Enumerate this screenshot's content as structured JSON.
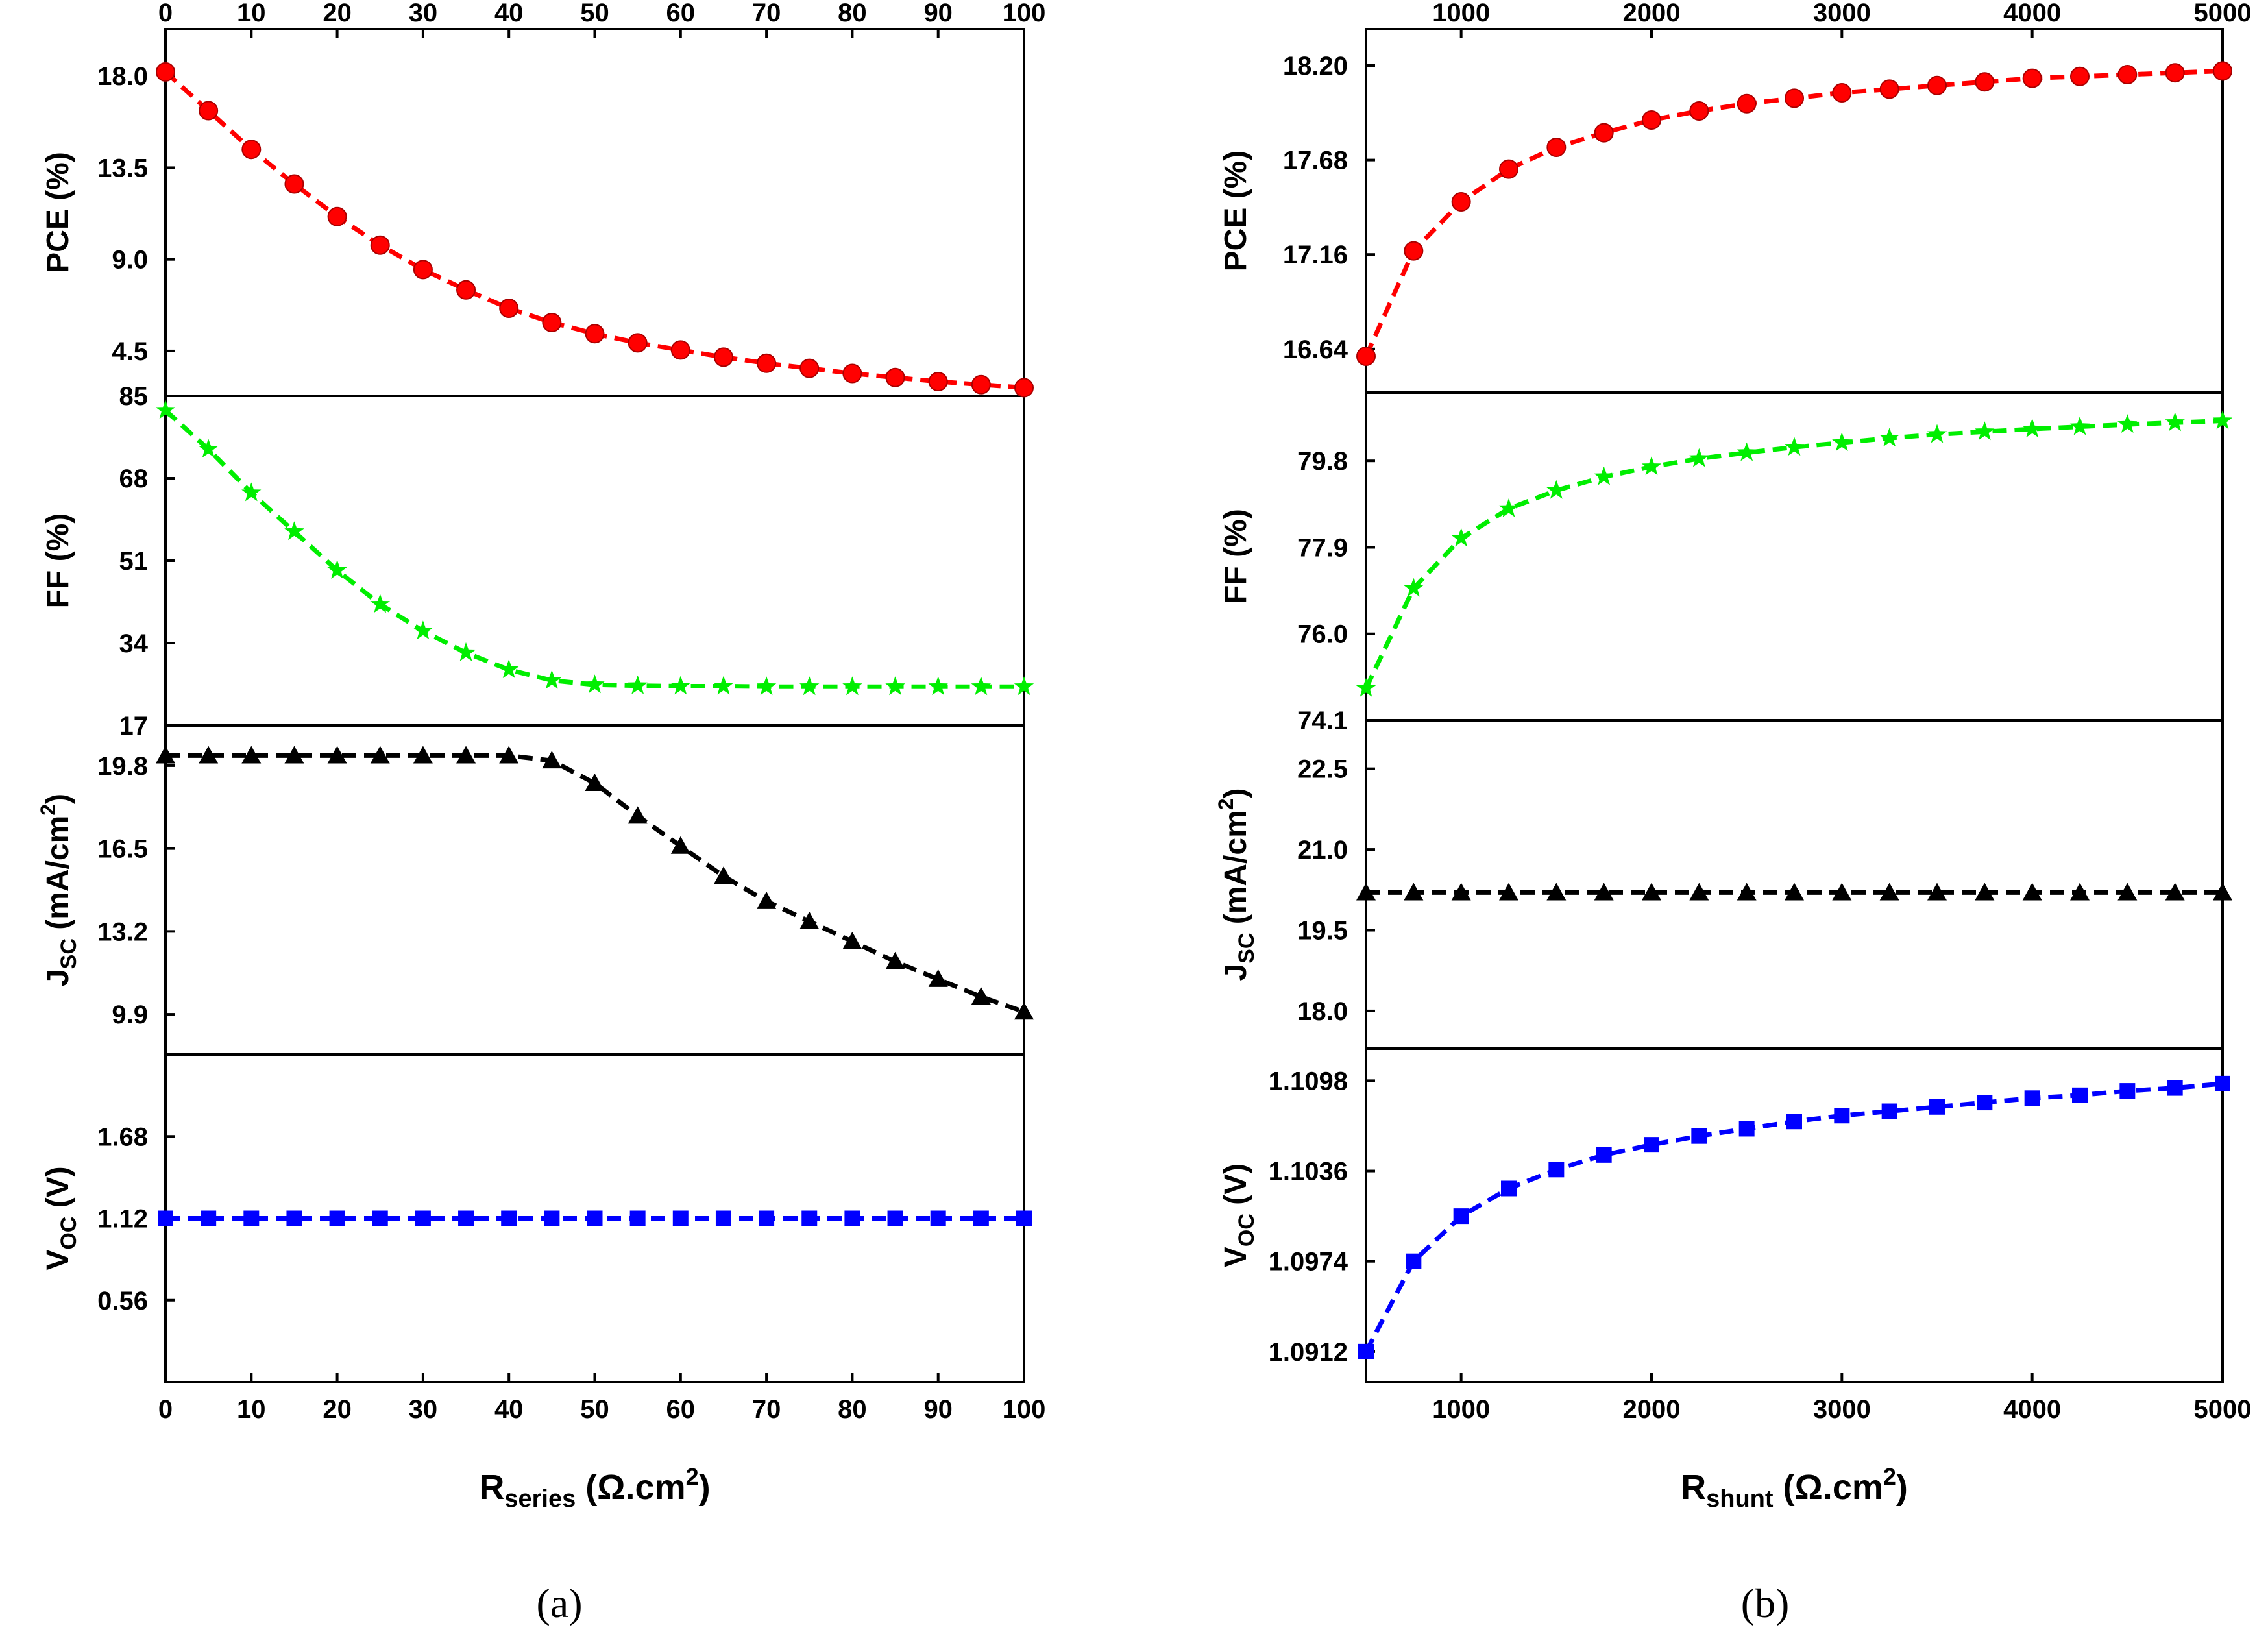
{
  "chart_data": [
    {
      "caption": "(a)",
      "type": "line",
      "x_axis": {
        "label_main": "R",
        "label_sub": "series",
        "label_unit_pre": " (Ω.cm",
        "label_unit_sup": "2",
        "label_unit_post": ")",
        "range": [
          0,
          100
        ],
        "ticks": [
          0,
          10,
          20,
          30,
          40,
          50,
          60,
          70,
          80,
          90,
          100
        ],
        "tick_labels": [
          "0",
          "10",
          "20",
          "30",
          "40",
          "50",
          "60",
          "70",
          "80",
          "90",
          "100"
        ],
        "top_mirror": true
      },
      "x": [
        0,
        5,
        10,
        15,
        20,
        25,
        30,
        35,
        40,
        45,
        50,
        55,
        60,
        65,
        70,
        75,
        80,
        85,
        90,
        95,
        100
      ],
      "subplots": [
        {
          "name": "PCE",
          "ylabel": "PCE (%)",
          "ylim": [
            2.3,
            20.3
          ],
          "yticks": [
            4.5,
            9.0,
            13.5,
            18.0
          ],
          "ytick_labels": [
            "4.5",
            "9.0",
            "13.5",
            "18.0"
          ],
          "color": "#ff0000",
          "marker": "circle",
          "values": [
            18.2,
            16.3,
            14.4,
            12.7,
            11.1,
            9.7,
            8.5,
            7.5,
            6.6,
            5.9,
            5.35,
            4.9,
            4.55,
            4.2,
            3.9,
            3.65,
            3.4,
            3.2,
            3.0,
            2.85,
            2.7
          ]
        },
        {
          "name": "FF",
          "ylabel": "FF (%)",
          "ylim": [
            17,
            85
          ],
          "yticks": [
            17,
            34,
            51,
            68,
            85
          ],
          "ytick_labels": [
            "17",
            "34",
            "51",
            "68",
            "85"
          ],
          "color": "#00ee00",
          "marker": "star",
          "values": [
            82,
            74,
            65,
            57,
            49,
            42,
            36.5,
            32,
            28.5,
            26.3,
            25.4,
            25.2,
            25.1,
            25.1,
            25.0,
            25.0,
            25.0,
            25.0,
            25.0,
            25.0,
            25.0
          ]
        },
        {
          "name": "Jsc",
          "ylabel_main": "J",
          "ylabel_sub": "SC",
          "ylabel_pre": " (mA/cm",
          "ylabel_sup": "2",
          "ylabel_post": ")",
          "ylim": [
            8.3,
            21.4
          ],
          "yticks": [
            9.9,
            13.2,
            16.5,
            19.8
          ],
          "ytick_labels": [
            "9.9",
            "13.2",
            "16.5",
            "19.8"
          ],
          "color": "#000000",
          "marker": "triangle",
          "values": [
            20.2,
            20.2,
            20.2,
            20.2,
            20.2,
            20.2,
            20.2,
            20.2,
            20.2,
            20.0,
            19.1,
            17.8,
            16.6,
            15.4,
            14.4,
            13.6,
            12.8,
            12.0,
            11.3,
            10.6,
            10.0
          ]
        },
        {
          "name": "Voc",
          "ylabel_main": "V",
          "ylabel_sub": "OC",
          "ylabel_post": " (V)",
          "ylim": [
            0,
            2.24
          ],
          "yticks": [
            0.56,
            1.12,
            1.68
          ],
          "ytick_labels": [
            "0.56",
            "1.12",
            "1.68"
          ],
          "color": "#0000ff",
          "marker": "square",
          "values": [
            1.12,
            1.12,
            1.12,
            1.12,
            1.12,
            1.12,
            1.12,
            1.12,
            1.12,
            1.12,
            1.12,
            1.12,
            1.12,
            1.12,
            1.12,
            1.12,
            1.12,
            1.12,
            1.12,
            1.12,
            1.12
          ]
        }
      ]
    },
    {
      "caption": "(b)",
      "type": "line",
      "x_axis": {
        "label_main": "R",
        "label_sub": "shunt",
        "label_unit_pre": " (Ω.cm",
        "label_unit_sup": "2",
        "label_unit_post": ")",
        "range": [
          500,
          5000
        ],
        "ticks": [
          1000,
          2000,
          3000,
          4000,
          5000
        ],
        "tick_labels": [
          "1000",
          "2000",
          "3000",
          "4000",
          "5000"
        ],
        "top_mirror": true
      },
      "x": [
        500,
        750,
        1000,
        1250,
        1500,
        1750,
        2000,
        2250,
        2500,
        2750,
        3000,
        3250,
        3500,
        3750,
        4000,
        4250,
        4500,
        4750,
        5000
      ],
      "subplots": [
        {
          "name": "PCE",
          "ylabel": "PCE (%)",
          "ylim": [
            16.4,
            18.4
          ],
          "yticks": [
            16.64,
            17.16,
            17.68,
            18.2
          ],
          "ytick_labels": [
            "16.64",
            "17.16",
            "17.68",
            "18.20"
          ],
          "color": "#ff0000",
          "marker": "circle",
          "values": [
            16.6,
            17.18,
            17.45,
            17.63,
            17.75,
            17.83,
            17.9,
            17.95,
            17.99,
            18.02,
            18.05,
            18.07,
            18.09,
            18.11,
            18.13,
            18.14,
            18.15,
            18.16,
            18.17
          ]
        },
        {
          "name": "FF",
          "ylabel": "FF (%)",
          "ylim": [
            74.1,
            81.3
          ],
          "yticks": [
            74.1,
            76.0,
            77.9,
            79.8
          ],
          "ytick_labels": [
            "74.1",
            "76.0",
            "77.9",
            "79.8"
          ],
          "color": "#00ee00",
          "marker": "star",
          "values": [
            74.8,
            77.0,
            78.1,
            78.75,
            79.15,
            79.45,
            79.67,
            79.85,
            79.98,
            80.1,
            80.2,
            80.3,
            80.38,
            80.44,
            80.5,
            80.55,
            80.6,
            80.64,
            80.68
          ]
        },
        {
          "name": "Jsc",
          "ylabel_main": "J",
          "ylabel_sub": "SC",
          "ylabel_pre": " (mA/cm",
          "ylabel_sup": "2",
          "ylabel_post": ")",
          "ylim": [
            17.3,
            23.4
          ],
          "yticks": [
            18.0,
            19.5,
            21.0,
            22.5
          ],
          "ytick_labels": [
            "18.0",
            "19.5",
            "21.0",
            "22.5"
          ],
          "color": "#000000",
          "marker": "triangle",
          "values": [
            20.2,
            20.2,
            20.2,
            20.2,
            20.2,
            20.2,
            20.2,
            20.2,
            20.2,
            20.2,
            20.2,
            20.2,
            20.2,
            20.2,
            20.2,
            20.2,
            20.2,
            20.2,
            20.2
          ]
        },
        {
          "name": "Voc",
          "ylabel_main": "V",
          "ylabel_sub": "OC",
          "ylabel_post": " (V)",
          "ylim": [
            1.0891,
            1.112
          ],
          "yticks": [
            1.0912,
            1.0974,
            1.1036,
            1.1098
          ],
          "ytick_labels": [
            "1.0912",
            "1.0974",
            "1.1036",
            "1.1098"
          ],
          "color": "#0000ff",
          "marker": "square",
          "values": [
            1.0912,
            1.0974,
            1.1005,
            1.1024,
            1.1037,
            1.1047,
            1.1054,
            1.106,
            1.1065,
            1.107,
            1.1074,
            1.1077,
            1.108,
            1.1083,
            1.1086,
            1.1088,
            1.1091,
            1.1093,
            1.1096
          ]
        }
      ]
    }
  ]
}
